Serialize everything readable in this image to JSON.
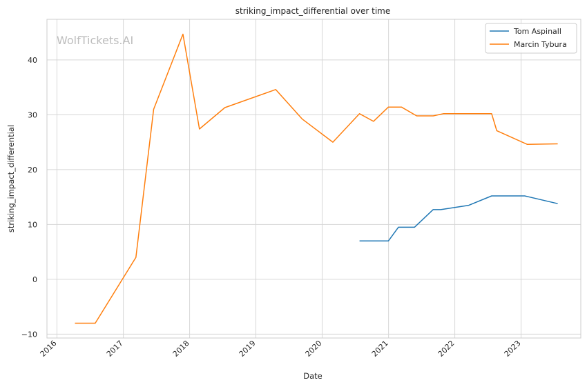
{
  "chart_data": {
    "type": "line",
    "title": "striking_impact_differential over time",
    "xlabel": "Date",
    "ylabel": "striking_impact_differential",
    "watermark": "WolfTickets.AI",
    "x_tick_labels": [
      "2016",
      "2017",
      "2018",
      "2019",
      "2020",
      "2021",
      "2022",
      "2023"
    ],
    "y_tick_labels": [
      "−10",
      "0",
      "10",
      "20",
      "30",
      "40"
    ],
    "y_ticks": [
      -10,
      0,
      10,
      20,
      30,
      40
    ],
    "x_ticks": [
      "2016-01-01",
      "2017-01-01",
      "2018-01-01",
      "2019-01-01",
      "2020-01-01",
      "2021-01-01",
      "2022-01-01",
      "2023-01-01"
    ],
    "xlim": [
      "2015-11-07",
      "2023-11-26"
    ],
    "ylim": [
      -10.7,
      47.4
    ],
    "grid": true,
    "legend_position": "top-right",
    "series": [
      {
        "name": "Tom Aspinall",
        "color": "#1f77b4",
        "points": [
          [
            "2020-07-25",
            7.0
          ],
          [
            "2020-12-31",
            7.0
          ],
          [
            "2021-02-24",
            9.5
          ],
          [
            "2021-05-24",
            9.5
          ],
          [
            "2021-09-03",
            12.7
          ],
          [
            "2021-10-15",
            12.7
          ],
          [
            "2022-03-19",
            13.5
          ],
          [
            "2022-07-23",
            15.2
          ],
          [
            "2023-01-21",
            15.2
          ],
          [
            "2023-07-22",
            13.8
          ]
        ]
      },
      {
        "name": "Marcin Tybura",
        "color": "#ff7f0e",
        "points": [
          [
            "2016-04-09",
            -8.0
          ],
          [
            "2016-07-30",
            -8.0
          ],
          [
            "2017-03-11",
            4.0
          ],
          [
            "2017-06-17",
            31.0
          ],
          [
            "2017-11-25",
            44.7
          ],
          [
            "2018-02-24",
            27.4
          ],
          [
            "2018-07-14",
            31.3
          ],
          [
            "2019-04-20",
            34.6
          ],
          [
            "2019-09-14",
            29.2
          ],
          [
            "2020-02-29",
            25.0
          ],
          [
            "2020-07-25",
            30.2
          ],
          [
            "2020-10-10",
            28.8
          ],
          [
            "2020-12-31",
            31.4
          ],
          [
            "2021-03-13",
            31.4
          ],
          [
            "2021-06-05",
            29.8
          ],
          [
            "2021-09-04",
            29.8
          ],
          [
            "2021-10-30",
            30.2
          ],
          [
            "2022-07-23",
            30.2
          ],
          [
            "2022-08-20",
            27.1
          ],
          [
            "2023-02-04",
            24.6
          ],
          [
            "2023-07-22",
            24.7
          ]
        ]
      }
    ]
  }
}
